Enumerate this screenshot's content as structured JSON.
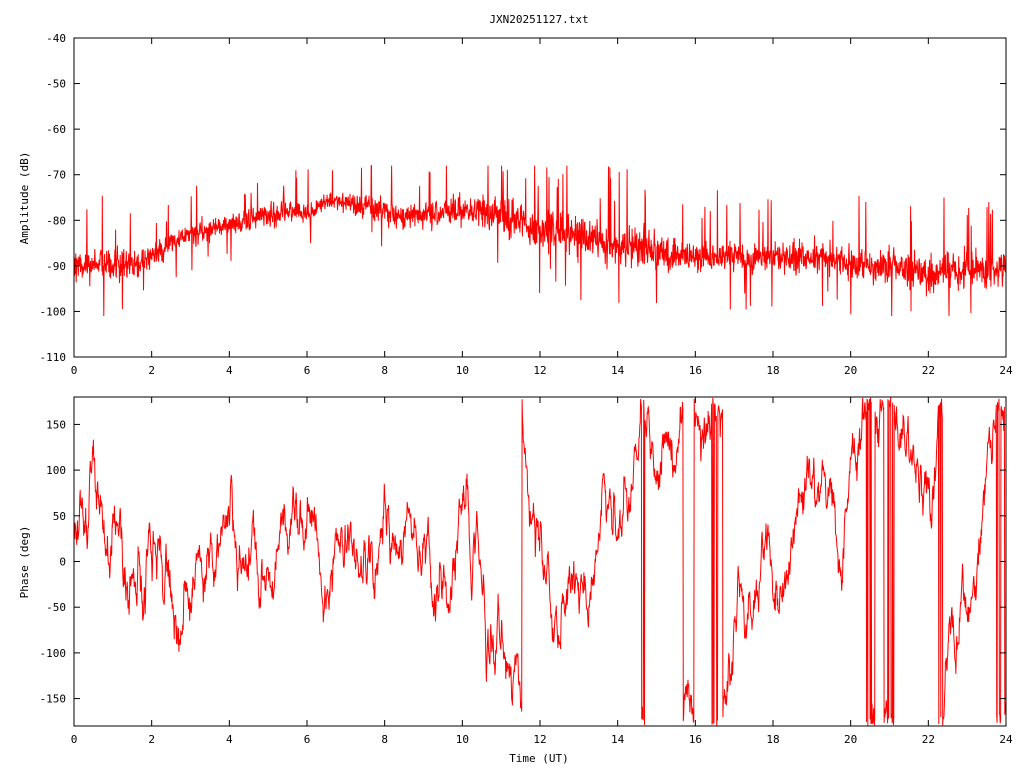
{
  "title": "JXN20251127.txt",
  "colors": {
    "series": "#ff0000",
    "axes": "#000000",
    "background": "#ffffff"
  },
  "chart_data": [
    {
      "type": "line",
      "title": "JXN20251127.txt",
      "xlabel": "",
      "ylabel": "Amplitude (dB)",
      "xlim": [
        0,
        24
      ],
      "ylim": [
        -110,
        -40
      ],
      "x_ticks": [
        "0",
        "2",
        "4",
        "6",
        "8",
        "10",
        "12",
        "14",
        "16",
        "18",
        "20",
        "22",
        "24"
      ],
      "y_ticks": [
        "-40",
        "-50",
        "-60",
        "-70",
        "-80",
        "-90",
        "-100",
        "-110"
      ],
      "grid": false,
      "series": [
        {
          "color": "#ff0000",
          "x": [
            0,
            0.5,
            1,
            1.5,
            2,
            2.5,
            3,
            3.5,
            4,
            4.5,
            5,
            5.5,
            6,
            6.5,
            7,
            7.5,
            8,
            8.5,
            9,
            9.5,
            10,
            10.5,
            11,
            11.5,
            12,
            12.5,
            13,
            13.5,
            14,
            14.5,
            15,
            15.5,
            16,
            16.5,
            17,
            17.5,
            18,
            18.5,
            19,
            19.5,
            20,
            20.5,
            21,
            21.5,
            22,
            22.5,
            23,
            23.5,
            24
          ],
          "mean": [
            -90,
            -90,
            -90,
            -90,
            -88,
            -85,
            -83,
            -82,
            -81,
            -80,
            -79,
            -78,
            -79,
            -76,
            -76,
            -77,
            -78,
            -79,
            -79,
            -78,
            -78,
            -78,
            -79,
            -80,
            -82,
            -82,
            -83,
            -85,
            -86,
            -86,
            -87,
            -88,
            -88,
            -88,
            -88,
            -88,
            -88,
            -88,
            -88,
            -88,
            -89,
            -90,
            -90,
            -91,
            -92,
            -91,
            -91,
            -91,
            -90
          ],
          "band": [
            5,
            5,
            5,
            5,
            4,
            3.5,
            3.5,
            3.5,
            3.5,
            3.5,
            3.5,
            3.5,
            3.5,
            3,
            3,
            3.5,
            4,
            4,
            4,
            5,
            5,
            5.5,
            6,
            6,
            6,
            6,
            6,
            6,
            6,
            6,
            5.5,
            5.5,
            5,
            5,
            5,
            5,
            5,
            5,
            5,
            5,
            5.5,
            5.5,
            5.5,
            5.5,
            6,
            5.5,
            5.5,
            5.5,
            5.5
          ],
          "spike_max": -68,
          "spike_min": -101
        }
      ]
    },
    {
      "type": "line",
      "title": "",
      "xlabel": "Time (UT)",
      "ylabel": "Phase (deg)",
      "xlim": [
        0,
        24
      ],
      "ylim": [
        -180,
        180
      ],
      "x_ticks": [
        "0",
        "2",
        "4",
        "6",
        "8",
        "10",
        "12",
        "14",
        "16",
        "18",
        "20",
        "22",
        "24"
      ],
      "y_ticks": [
        "150",
        "100",
        "50",
        "0",
        "-50",
        "-100",
        "-150"
      ],
      "y_tick_values": [
        150,
        100,
        50,
        0,
        -50,
        -100,
        -150
      ],
      "grid": false,
      "series": [
        {
          "color": "#ff0000",
          "range": [
            -180,
            180
          ],
          "wrapping": true
        }
      ]
    }
  ]
}
